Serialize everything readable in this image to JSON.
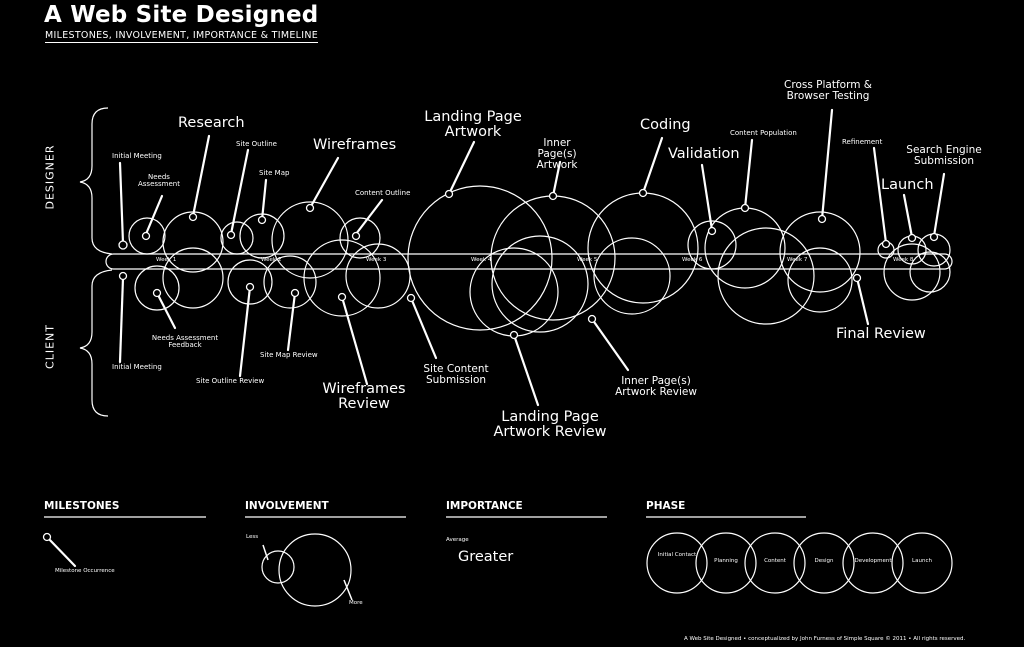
{
  "header": {
    "title": "A Web Site Designed",
    "subtitle": "MILESTONES, INVOLVEMENT, IMPORTANCE & TIMELINE"
  },
  "sides": {
    "designer": "DESIGNER",
    "client": "CLIENT"
  },
  "timeline": {
    "weeks": [
      "Week 1",
      "Week 2",
      "Week 3",
      "Week 4",
      "Week 5",
      "Week 6",
      "Week 7",
      "Week 8"
    ]
  },
  "designer_milestones": {
    "initial_meeting": "Initial Meeting",
    "needs_assessment": "Needs Assessment",
    "research": "Research",
    "site_outline": "Site Outline",
    "site_map": "Site Map",
    "wireframes": "Wireframes",
    "content_outline": "Content Outline",
    "landing_page_artwork": "Landing Page Artwork",
    "inner_pages_artwork": "Inner Page(s) Artwork",
    "coding": "Coding",
    "validation": "Validation",
    "content_population": "Content Population",
    "cross_platform": "Cross Platform & Browser Testing",
    "refinement": "Refinement",
    "launch": "Launch",
    "search_engine": "Search Engine Submission"
  },
  "client_milestones": {
    "initial_meeting": "Initial Meeting",
    "needs_assessment_feedback": "Needs Assessment Feedback",
    "site_outline_review": "Site Outline Review",
    "site_map_review": "Site Map Review",
    "wireframes_review": "Wireframes Review",
    "site_content_submission": "Site Content Submission",
    "landing_page_review": "Landing Page Artwork Review",
    "inner_pages_review": "Inner Page(s) Artwork Review",
    "final_review": "Final Review"
  },
  "legend": {
    "milestones": {
      "heading": "MILESTONES",
      "item": "Milestone Occurrence"
    },
    "involvement": {
      "heading": "INVOLVEMENT",
      "less": "Less",
      "more": "More"
    },
    "importance": {
      "heading": "IMPORTANCE",
      "average": "Average",
      "greater": "Greater"
    },
    "phase": {
      "heading": "PHASE",
      "items": [
        "Initial Contact",
        "Planning",
        "Content",
        "Design",
        "Development",
        "Launch"
      ]
    }
  },
  "credit": "A Web Site Designed • conceptualized by John Furness of Simple Square © 2011 • All rights reserved."
}
